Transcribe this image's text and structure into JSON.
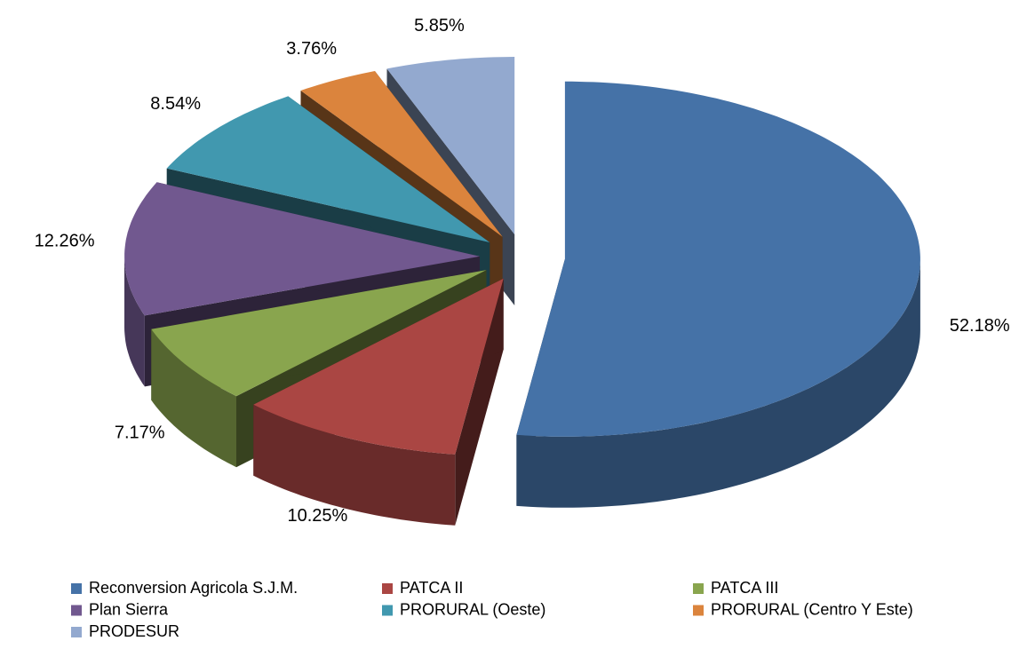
{
  "chart_data": {
    "type": "pie",
    "categories": [
      "Reconversion Agricola S.J.M.",
      "PATCA II",
      "PATCA III",
      "Plan Sierra",
      "PRORURAL (Oeste)",
      "PRORURAL (Centro Y Este)",
      "PRODESUR"
    ],
    "values": [
      52.18,
      10.25,
      7.17,
      12.26,
      8.54,
      3.76,
      5.85
    ],
    "value_labels": [
      "52.18%",
      "10.25%",
      "7.17%",
      "12.26%",
      "8.54%",
      "3.76%",
      "5.85%"
    ],
    "colors": [
      "#4572a7",
      "#aa4643",
      "#89a54e",
      "#71588f",
      "#4198af",
      "#db843d",
      "#93a9cf"
    ],
    "legend": "bottom"
  }
}
